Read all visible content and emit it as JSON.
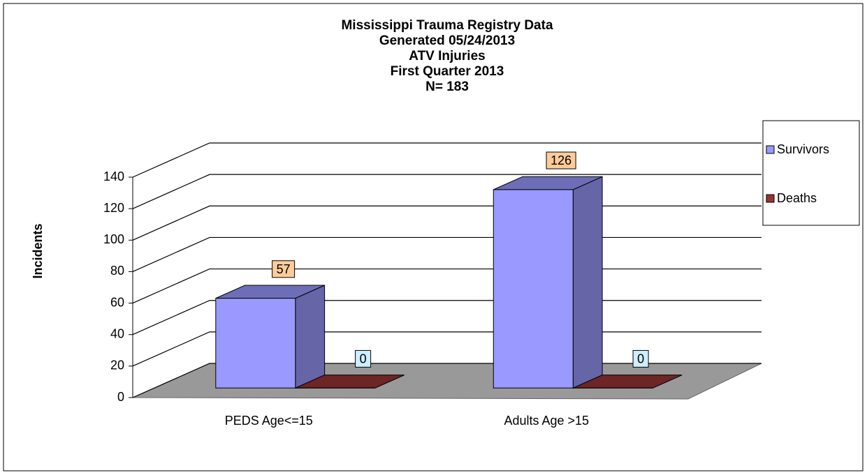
{
  "chart_data": {
    "type": "bar3d",
    "title": [
      "Mississippi Trauma Registry Data",
      "Generated  05/24/2013",
      "ATV Injuries",
      "First Quarter 2013",
      "N= 183"
    ],
    "ylabel": "Incidents",
    "categories": [
      "PEDS  Age<=15",
      "Adults Age >15"
    ],
    "series": [
      {
        "name": "Survivors",
        "color": "#9999ff",
        "values": [
          57,
          126
        ]
      },
      {
        "name": "Deaths",
        "color": "#993333",
        "values": [
          0,
          0
        ]
      }
    ],
    "ylim": [
      0,
      140
    ],
    "yticks": [
      0,
      20,
      40,
      60,
      80,
      100,
      120,
      140
    ],
    "grid": true,
    "legend": "right"
  }
}
